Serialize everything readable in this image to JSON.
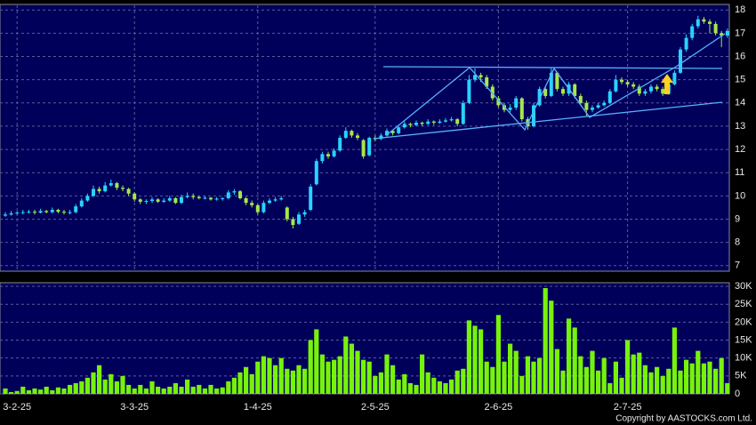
{
  "chart_data": [
    {
      "type": "candlestick",
      "categories": [
        null,
        null,
        "3-2-25",
        null,
        null,
        null,
        null,
        null,
        null,
        null,
        null,
        null,
        null,
        null,
        null,
        null,
        null,
        null,
        null,
        null,
        null,
        null,
        "3-3-25",
        null,
        null,
        null,
        null,
        null,
        null,
        null,
        null,
        null,
        null,
        null,
        null,
        null,
        null,
        null,
        null,
        null,
        null,
        null,
        null,
        "1-4-25",
        null,
        null,
        null,
        null,
        null,
        null,
        null,
        null,
        null,
        null,
        null,
        null,
        null,
        null,
        null,
        null,
        null,
        null,
        null,
        "2-5-25",
        null,
        null,
        null,
        null,
        null,
        null,
        null,
        null,
        null,
        null,
        null,
        null,
        null,
        null,
        null,
        null,
        null,
        null,
        null,
        null,
        "2-6-25",
        null,
        null,
        null,
        null,
        null,
        null,
        null,
        null,
        null,
        null,
        null,
        null,
        null,
        null,
        null,
        null,
        null,
        null,
        null,
        null,
        null,
        "2-7-25",
        null,
        null,
        null,
        null,
        null,
        null,
        null,
        null,
        null,
        null,
        null,
        null,
        null,
        null,
        null,
        null,
        null
      ],
      "open": [
        9.15,
        9.2,
        9.25,
        9.28,
        9.3,
        9.32,
        9.28,
        9.35,
        9.3,
        9.4,
        9.32,
        9.28,
        9.3,
        9.55,
        9.8,
        10,
        10.3,
        10.2,
        10.45,
        10.55,
        10.35,
        10.3,
        10.1,
        9.85,
        9.75,
        9.78,
        9.85,
        9.75,
        9.8,
        9.9,
        9.7,
        9.95,
        10,
        9.95,
        9.9,
        9.92,
        9.85,
        9.88,
        9.9,
        10.15,
        10.2,
        9.9,
        9.7,
        9.6,
        9.3,
        9.7,
        9.8,
        9.85,
        9.5,
        9,
        8.8,
        9.2,
        9.4,
        10.5,
        11.5,
        11.8,
        11.7,
        11.95,
        12.5,
        12.8,
        12.6,
        12.4,
        11.75,
        12.5,
        12.45,
        12.6,
        12.8,
        12.7,
        12.95,
        13.1,
        13.05,
        13.15,
        13.1,
        13.2,
        13.15,
        13.2,
        13.25,
        13.3,
        13.1,
        14,
        15,
        15.2,
        15.1,
        14.7,
        14.2,
        13.9,
        13.7,
        13.8,
        14.2,
        13.3,
        13,
        13.9,
        14.6,
        14.3,
        15.3,
        14.6,
        14.4,
        14.8,
        14.3,
        14,
        13.7,
        13.8,
        13.9,
        14,
        14.5,
        15,
        14.9,
        14.8,
        14.7,
        14.4,
        14.5,
        14.7,
        14.6,
        14.4,
        14.8,
        15.3,
        16.3,
        16.8,
        17.3,
        17.6,
        17.5,
        17.4,
        17,
        16.9
      ],
      "high": [
        9.3,
        9.35,
        9.35,
        9.4,
        9.4,
        9.4,
        9.45,
        9.4,
        9.5,
        9.45,
        9.4,
        9.4,
        9.65,
        9.9,
        10.1,
        10.45,
        10.4,
        10.6,
        10.7,
        10.6,
        10.45,
        10.35,
        10.15,
        9.9,
        9.85,
        9.95,
        9.9,
        9.9,
        10,
        9.95,
        10.05,
        10.15,
        10.1,
        10,
        10,
        9.95,
        9.95,
        9.95,
        10.25,
        10.3,
        10.25,
        9.95,
        9.8,
        9.65,
        9.8,
        9.9,
        9.95,
        10,
        9.55,
        9.1,
        9.3,
        9.4,
        10.5,
        11.6,
        11.9,
        11.9,
        12.05,
        12.6,
        12.95,
        12.85,
        12.7,
        12.45,
        12.55,
        12.6,
        12.7,
        12.9,
        12.85,
        13.05,
        13.2,
        13.15,
        13.25,
        13.2,
        13.3,
        13.25,
        13.3,
        13.35,
        13.4,
        13.35,
        14.1,
        15.2,
        15.5,
        15.3,
        15.2,
        14.8,
        14.3,
        14,
        13.95,
        14.3,
        14.25,
        13.4,
        14,
        14.7,
        14.7,
        15.5,
        15.35,
        14.7,
        14.9,
        14.85,
        14.4,
        14.1,
        13.9,
        14,
        14.1,
        14.6,
        15.2,
        15.1,
        15,
        14.9,
        14.8,
        14.6,
        14.8,
        14.8,
        14.7,
        14.9,
        15.4,
        16.4,
        16.95,
        17.4,
        17.75,
        17.7,
        17.6,
        17.5,
        17.1,
        17.2
      ],
      "low": [
        9.1,
        9.15,
        9.2,
        9.2,
        9.25,
        9.2,
        9.25,
        9.25,
        9.25,
        9.25,
        9.2,
        9.2,
        9.25,
        9.5,
        9.75,
        9.95,
        10.1,
        10.15,
        10.4,
        10.25,
        10.2,
        10,
        9.75,
        9.65,
        9.65,
        9.7,
        9.7,
        9.7,
        9.75,
        9.65,
        9.65,
        9.9,
        9.85,
        9.85,
        9.85,
        9.8,
        9.8,
        9.8,
        9.85,
        10.05,
        9.85,
        9.6,
        9.5,
        9.2,
        9.25,
        9.65,
        9.75,
        9.8,
        8.9,
        8.6,
        8.75,
        9.1,
        9.35,
        10.45,
        11.4,
        11.6,
        11.65,
        11.9,
        12.45,
        12.5,
        12.4,
        11.6,
        11.7,
        12.35,
        12.4,
        12.55,
        12.6,
        12.65,
        12.9,
        12.95,
        13,
        13,
        13.05,
        13.05,
        13.1,
        13.15,
        13.2,
        13,
        13.05,
        13.95,
        14.9,
        14.9,
        14.6,
        14.1,
        13.8,
        13.6,
        13.6,
        13.7,
        13.2,
        12.85,
        12.95,
        13.85,
        14.2,
        14.25,
        14.5,
        14.3,
        14.3,
        14.2,
        13.9,
        13.45,
        13.6,
        13.75,
        13.85,
        13.95,
        14.45,
        14.8,
        14.7,
        14.6,
        14.3,
        14.3,
        14.4,
        14.5,
        14.3,
        14.35,
        14.75,
        15.25,
        16.2,
        16.7,
        17.2,
        17.4,
        17,
        16.9,
        16.4,
        16.8
      ],
      "close": [
        9.2,
        9.25,
        9.28,
        9.3,
        9.32,
        9.28,
        9.35,
        9.3,
        9.4,
        9.32,
        9.28,
        9.3,
        9.55,
        9.8,
        10,
        10.3,
        10.2,
        10.45,
        10.55,
        10.35,
        10.3,
        10.1,
        9.85,
        9.75,
        9.78,
        9.85,
        9.75,
        9.8,
        9.9,
        9.7,
        9.95,
        10,
        9.95,
        9.9,
        9.92,
        9.85,
        9.88,
        9.9,
        10.15,
        10.2,
        9.9,
        9.7,
        9.6,
        9.3,
        9.7,
        9.8,
        9.85,
        9.9,
        9,
        8.75,
        9.2,
        9.3,
        10.4,
        11.5,
        11.8,
        11.7,
        11.95,
        12.5,
        12.8,
        12.6,
        12.5,
        11.7,
        12.5,
        12.45,
        12.6,
        12.8,
        12.7,
        12.95,
        13.1,
        13.05,
        13.15,
        13.1,
        13.2,
        13.15,
        13.2,
        13.25,
        13.3,
        13.1,
        14,
        15,
        15.2,
        15.1,
        14.7,
        14.2,
        13.9,
        13.7,
        13.8,
        14.2,
        13.3,
        13,
        13.9,
        14.6,
        14.3,
        15.3,
        14.6,
        14.4,
        14.8,
        14.3,
        14,
        13.7,
        13.8,
        13.9,
        14,
        14.5,
        15,
        14.9,
        14.8,
        14.7,
        14.4,
        14.5,
        14.7,
        14.6,
        14.4,
        14.8,
        15.3,
        16.3,
        16.8,
        17.3,
        17.6,
        17.5,
        17.4,
        17,
        16.9,
        17.1
      ],
      "up_color": "#29d3ff",
      "down_color": "#a6e84a",
      "ylim": [
        6.8,
        18.2
      ],
      "yticks": [
        7,
        8,
        9,
        10,
        11,
        12,
        13,
        14,
        15,
        16,
        17,
        18
      ],
      "grid": true
    },
    {
      "type": "bar",
      "values": [
        1500,
        500,
        800,
        2000,
        1000,
        1500,
        1200,
        2000,
        1000,
        1800,
        1500,
        2500,
        3000,
        3500,
        4500,
        6000,
        8000,
        4000,
        5500,
        3500,
        5000,
        2500,
        1500,
        2500,
        1500,
        3500,
        2000,
        1500,
        2000,
        3000,
        2000,
        4000,
        2000,
        2500,
        1500,
        2500,
        1500,
        1800,
        3500,
        4500,
        6000,
        7500,
        5500,
        9000,
        10500,
        10000,
        8000,
        10000,
        7000,
        6500,
        8000,
        7000,
        15000,
        18000,
        11000,
        9000,
        9500,
        10500,
        16000,
        14000,
        12000,
        9500,
        9000,
        5000,
        6000,
        11000,
        8000,
        4000,
        5500,
        3000,
        2500,
        11000,
        6000,
        4500,
        3500,
        3000,
        4000,
        6500,
        7000,
        20500,
        19000,
        18000,
        9000,
        7500,
        22000,
        9000,
        14000,
        12000,
        5000,
        10500,
        9000,
        10000,
        29500,
        26000,
        12500,
        6500,
        21000,
        18500,
        10500,
        7500,
        12000,
        6500,
        10000,
        3000,
        9000,
        4500,
        15000,
        11000,
        11500,
        8000,
        6000,
        7500,
        5000,
        7000,
        18500,
        6500,
        9500,
        8500,
        12000,
        8500,
        9000,
        7000,
        10000,
        3000
      ],
      "color": "#77f20a",
      "ylim": [
        0,
        31000
      ],
      "yticks": [
        {
          "value": 0,
          "label": "0"
        },
        {
          "value": 5000,
          "label": "5K"
        },
        {
          "value": 10000,
          "label": "10K"
        },
        {
          "value": 15000,
          "label": "15K"
        },
        {
          "value": 20000,
          "label": "20K"
        },
        {
          "value": 25000,
          "label": "25K"
        },
        {
          "value": 30000,
          "label": "30K"
        }
      ],
      "grid": true
    }
  ],
  "copyright": "Copyright by AASTOCKS.com Ltd."
}
